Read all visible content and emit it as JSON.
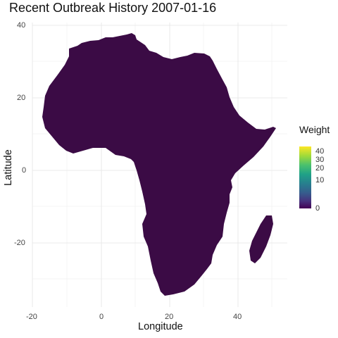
{
  "title": "Recent Outbreak History 2007-01-16",
  "xlabel": "Longitude",
  "ylabel": "Latitude",
  "x_ticks": [
    "-20",
    "0",
    "20",
    "40"
  ],
  "y_ticks": [
    "40",
    "20",
    "0",
    "-20"
  ],
  "legend": {
    "title": "Weight",
    "ticks": [
      "40",
      "30",
      "20",
      "10",
      "0"
    ],
    "colormap": "viridis",
    "range": [
      0,
      42
    ]
  },
  "colors": {
    "fill": "#3b0b45",
    "grid": "#e6e6e6"
  },
  "chart_data": {
    "type": "heatmap",
    "title": "Recent Outbreak History 2007-01-16",
    "xlabel": "Longitude",
    "ylabel": "Latitude",
    "xlim": [
      -21,
      53
    ],
    "ylim": [
      -37,
      39
    ],
    "grid": true,
    "legend_position": "right",
    "color_scale": "sqrt",
    "regions": [
      {
        "name": "Africa",
        "weight": 0
      },
      {
        "name": "Madagascar",
        "weight": 0
      }
    ]
  }
}
